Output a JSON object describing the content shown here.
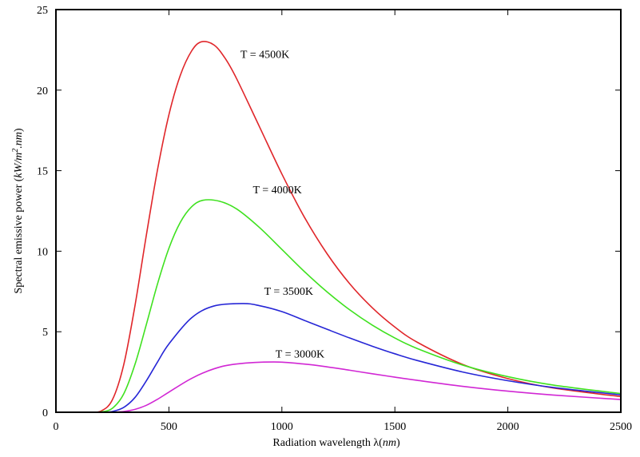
{
  "chart_data": {
    "type": "line",
    "title": "",
    "xlabel": "Radiation wavelength λ(nm)",
    "ylabel": "Spectral emissive power (kW/m².nm)",
    "xlabel_parts": {
      "text": "Radiation wavelength λ(",
      "unit": "nm",
      "close": ")"
    },
    "ylabel_parts": {
      "text": "Spectral emissive power (",
      "unit": "kW/m",
      "sup": "2",
      "unit2": ".nm",
      "close": ")"
    },
    "xlim": [
      0,
      2500
    ],
    "ylim": [
      0,
      25
    ],
    "xticks": [
      0,
      500,
      1000,
      1500,
      2000,
      2500
    ],
    "yticks": [
      0,
      5,
      10,
      15,
      20,
      25
    ],
    "grid": false,
    "legend": "none",
    "series": [
      {
        "name": "T = 4500K",
        "color": "#e0262a",
        "label_at": [
          925,
          22.0
        ],
        "x": [
          150,
          200,
          250,
          300,
          350,
          400,
          450,
          500,
          550,
          600,
          644,
          700,
          750,
          800,
          900,
          1000,
          1100,
          1200,
          1300,
          1400,
          1500,
          1600,
          1800,
          2000,
          2200,
          2500
        ],
        "y": [
          0.0,
          0.08,
          0.78,
          2.95,
          6.63,
          10.98,
          15.09,
          18.47,
          20.9,
          22.42,
          23.0,
          22.8,
          21.95,
          20.7,
          17.75,
          14.79,
          12.1,
          9.84,
          7.98,
          6.49,
          5.29,
          4.34,
          2.97,
          2.09,
          1.51,
          0.97
        ]
      },
      {
        "name": "T = 4000K",
        "color": "#3fe11f",
        "label_at": [
          980,
          13.6
        ],
        "x": [
          150,
          200,
          250,
          300,
          350,
          400,
          450,
          500,
          550,
          600,
          650,
          724,
          800,
          900,
          1000,
          1100,
          1200,
          1300,
          1400,
          1500,
          1600,
          1800,
          2000,
          2200,
          2500
        ],
        "y": [
          0.0,
          0.02,
          0.25,
          1.14,
          2.98,
          5.44,
          7.99,
          10.18,
          11.78,
          12.75,
          13.16,
          13.1,
          12.62,
          11.48,
          10.11,
          8.73,
          7.47,
          6.36,
          5.41,
          4.61,
          3.95,
          2.93,
          2.21,
          1.69,
          1.16
        ]
      },
      {
        "name": "T = 3500K",
        "color": "#2626d6",
        "label_at": [
          1030,
          7.3
        ],
        "x": [
          200,
          250,
          300,
          350,
          400,
          450,
          500,
          600,
          700,
          828,
          900,
          1000,
          1100,
          1200,
          1300,
          1400,
          1500,
          1600,
          1800,
          2000,
          2200,
          2500
        ],
        "y": [
          0.0,
          0.05,
          0.3,
          0.92,
          1.95,
          3.13,
          4.24,
          5.86,
          6.6,
          6.75,
          6.62,
          6.25,
          5.7,
          5.15,
          4.61,
          4.1,
          3.63,
          3.21,
          2.5,
          1.96,
          1.54,
          1.08
        ]
      },
      {
        "name": "T = 3000K",
        "color": "#d127d4",
        "label_at": [
          1080,
          3.4
        ],
        "x": [
          250,
          300,
          350,
          400,
          450,
          500,
          600,
          700,
          800,
          966,
          1100,
          1200,
          1300,
          1400,
          1500,
          1600,
          1800,
          2000,
          2200,
          2500
        ],
        "y": [
          0.0,
          0.05,
          0.18,
          0.43,
          0.81,
          1.25,
          2.1,
          2.7,
          3.0,
          3.12,
          2.99,
          2.82,
          2.61,
          2.39,
          2.18,
          1.98,
          1.61,
          1.31,
          1.07,
          0.79
        ]
      }
    ]
  }
}
